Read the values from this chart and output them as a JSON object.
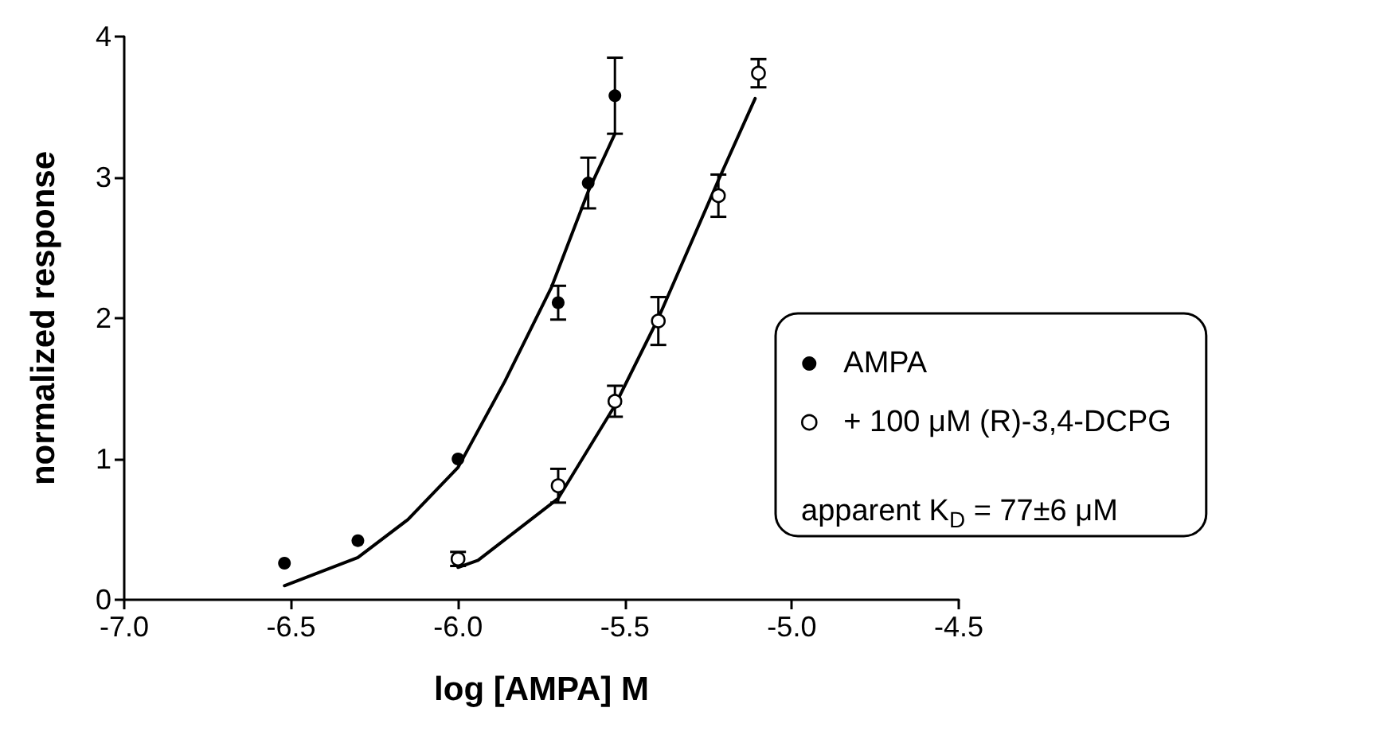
{
  "chart_data": {
    "type": "scatter",
    "xlabel": "log [AMPA] M",
    "ylabel": "normalized response",
    "xlim": [
      -7.0,
      -4.5
    ],
    "xticks": [
      {
        "value": -7.0,
        "label": "-7.0"
      },
      {
        "value": -6.5,
        "label": "-6.5"
      },
      {
        "value": -6.0,
        "label": "-6.0"
      },
      {
        "value": -5.5,
        "label": "-5.5"
      },
      {
        "value": -5.0,
        "label": "-5.0"
      },
      {
        "value": -4.5,
        "label": "-4.5"
      }
    ],
    "ylim": [
      0,
      4
    ],
    "yticks": [
      0,
      1,
      2,
      3,
      4
    ],
    "grid": false,
    "legend": "right",
    "marker": "circle",
    "annotations": [
      "apparent K$_{D}$ = 77±6 μM"
    ],
    "series": [
      {
        "name": "AMPA",
        "color": "#000000",
        "x": [
          -6.52,
          -6.3,
          -6.0,
          -5.7,
          -5.61,
          -5.53
        ],
        "values": [
          0.26,
          0.42,
          1.0,
          2.11,
          2.96,
          3.58
        ],
        "errors": [
          null,
          null,
          null,
          0.12,
          0.18,
          0.27
        ]
      },
      {
        "name": "+ 100 μM (R)-3,4-DCPG",
        "color": "#ffffff",
        "x": [
          -6.0,
          -5.7,
          -5.53,
          -5.4,
          -5.22,
          -5.1
        ],
        "values": [
          0.29,
          0.81,
          1.41,
          1.98,
          2.87,
          3.74
        ],
        "errors": [
          0.05,
          0.12,
          0.11,
          0.17,
          0.15,
          0.1
        ]
      },
      {
        "type": "line",
        "color": "#000000",
        "marker": "none",
        "line_style": "solid",
        "x": [
          -6.52,
          -6.3,
          -6.15,
          -6.0,
          -5.86,
          -5.72,
          -5.61,
          -5.53
        ],
        "values": [
          0.1,
          0.3,
          0.57,
          0.94,
          1.55,
          2.22,
          2.9,
          3.31
        ]
      },
      {
        "type": "line",
        "color": "#000000",
        "marker": "none",
        "line_style": "solid",
        "x": [
          -6.0,
          -5.94,
          -5.7,
          -5.53,
          -5.4,
          -5.22,
          -5.11
        ],
        "values": [
          0.23,
          0.28,
          0.72,
          1.38,
          2.0,
          2.98,
          3.56
        ]
      }
    ]
  }
}
